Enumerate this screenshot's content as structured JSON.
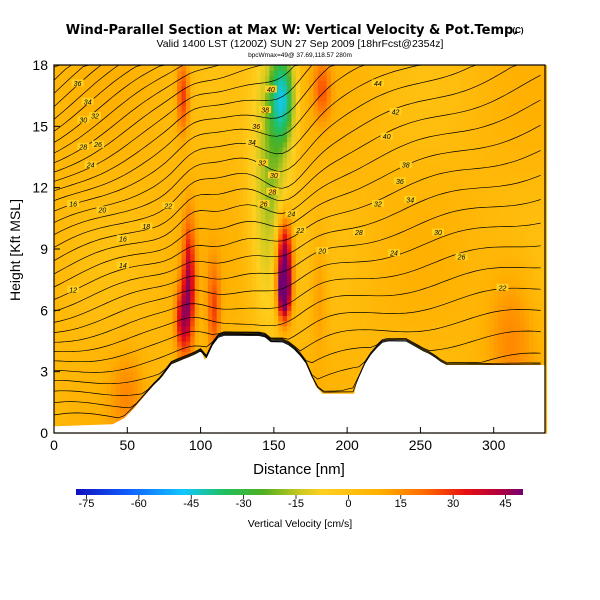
{
  "chart_data": {
    "type": "heatmap",
    "title": "Wind-Parallel Section at Max W: Vertical Velocity & Pot.Temp.",
    "title_mark": "(C)",
    "subtitle": "Valid 1400 LST (1200Z) SUN 27 Sep 2009 [18hrFcst@2354z]",
    "subtitle2": "bpcWmax=49@ 37.69,118.57 280m",
    "xlabel": "Distance [nm]",
    "ylabel": "Height [Kft MSL]",
    "xlim": [
      0,
      335
    ],
    "ylim": [
      0,
      18
    ],
    "x_ticks": [
      0,
      50,
      100,
      150,
      200,
      250,
      300
    ],
    "y_ticks": [
      0,
      3,
      6,
      9,
      12,
      15,
      18
    ],
    "colorbar": {
      "label": "Vertical Velocity [cm/s]",
      "ticks": [
        -75,
        -60,
        -45,
        -30,
        -15,
        0,
        15,
        30,
        45
      ],
      "range": [
        -78,
        50
      ]
    },
    "contour_labels": [
      {
        "x": 16,
        "y": 17.1,
        "text": "36"
      },
      {
        "x": 23,
        "y": 16.2,
        "text": "34"
      },
      {
        "x": 28,
        "y": 15.5,
        "text": "32"
      },
      {
        "x": 20,
        "y": 15.3,
        "text": "30"
      },
      {
        "x": 20,
        "y": 14.0,
        "text": "28"
      },
      {
        "x": 30,
        "y": 14.1,
        "text": "26"
      },
      {
        "x": 25,
        "y": 13.1,
        "text": "24"
      },
      {
        "x": 13,
        "y": 11.2,
        "text": "16"
      },
      {
        "x": 33,
        "y": 10.9,
        "text": "20"
      },
      {
        "x": 78,
        "y": 11.1,
        "text": "22"
      },
      {
        "x": 63,
        "y": 10.1,
        "text": "18"
      },
      {
        "x": 47,
        "y": 9.5,
        "text": "16"
      },
      {
        "x": 47,
        "y": 8.2,
        "text": "14"
      },
      {
        "x": 13,
        "y": 7.0,
        "text": "12"
      },
      {
        "x": 148,
        "y": 16.8,
        "text": "40"
      },
      {
        "x": 144,
        "y": 15.8,
        "text": "38"
      },
      {
        "x": 138,
        "y": 15.0,
        "text": "36"
      },
      {
        "x": 135,
        "y": 14.2,
        "text": "34"
      },
      {
        "x": 142,
        "y": 13.2,
        "text": "32"
      },
      {
        "x": 150,
        "y": 12.6,
        "text": "30"
      },
      {
        "x": 149,
        "y": 11.8,
        "text": "28"
      },
      {
        "x": 143,
        "y": 11.2,
        "text": "26"
      },
      {
        "x": 162,
        "y": 10.7,
        "text": "24"
      },
      {
        "x": 168,
        "y": 9.9,
        "text": "22"
      },
      {
        "x": 183,
        "y": 8.9,
        "text": "20"
      },
      {
        "x": 221,
        "y": 17.1,
        "text": "44"
      },
      {
        "x": 233,
        "y": 15.7,
        "text": "42"
      },
      {
        "x": 227,
        "y": 14.5,
        "text": "40"
      },
      {
        "x": 240,
        "y": 13.1,
        "text": "38"
      },
      {
        "x": 236,
        "y": 12.3,
        "text": "36"
      },
      {
        "x": 243,
        "y": 11.4,
        "text": "34"
      },
      {
        "x": 221,
        "y": 11.2,
        "text": "32"
      },
      {
        "x": 262,
        "y": 9.8,
        "text": "30"
      },
      {
        "x": 208,
        "y": 9.8,
        "text": "28"
      },
      {
        "x": 278,
        "y": 8.6,
        "text": "26"
      },
      {
        "x": 232,
        "y": 8.8,
        "text": "24"
      },
      {
        "x": 306,
        "y": 7.1,
        "text": "22"
      }
    ],
    "terrain": [
      [
        0,
        0.3
      ],
      [
        40,
        0.4
      ],
      [
        48,
        0.7
      ],
      [
        55,
        1.2
      ],
      [
        62,
        1.8
      ],
      [
        68,
        2.3
      ],
      [
        75,
        2.8
      ],
      [
        78,
        3.3
      ],
      [
        88,
        3.6
      ],
      [
        95,
        3.8
      ],
      [
        100,
        4.0
      ],
      [
        103,
        3.5
      ],
      [
        108,
        4.3
      ],
      [
        113,
        4.8
      ],
      [
        120,
        4.8
      ],
      [
        125,
        4.8
      ],
      [
        130,
        4.8
      ],
      [
        138,
        4.8
      ],
      [
        143,
        4.8
      ],
      [
        148,
        4.5
      ],
      [
        153,
        4.5
      ],
      [
        157,
        4.5
      ],
      [
        163,
        4.2
      ],
      [
        168,
        3.8
      ],
      [
        173,
        3.3
      ],
      [
        178,
        2.3
      ],
      [
        183,
        1.9
      ],
      [
        190,
        1.9
      ],
      [
        198,
        1.9
      ],
      [
        205,
        1.9
      ],
      [
        207,
        2.5
      ],
      [
        210,
        3.0
      ],
      [
        213,
        3.5
      ],
      [
        218,
        4.0
      ],
      [
        225,
        4.5
      ],
      [
        230,
        4.5
      ],
      [
        240,
        4.5
      ],
      [
        245,
        4.3
      ],
      [
        252,
        4.0
      ],
      [
        258,
        3.8
      ],
      [
        263,
        3.5
      ],
      [
        268,
        3.3
      ],
      [
        275,
        3.3
      ],
      [
        283,
        3.3
      ],
      [
        290,
        3.3
      ],
      [
        300,
        3.3
      ],
      [
        310,
        3.3
      ],
      [
        320,
        3.3
      ],
      [
        335,
        3.3
      ]
    ],
    "w_features": [
      {
        "x": 157,
        "y": 8.5,
        "sx": 4,
        "sy": 1.6,
        "w": 48
      },
      {
        "x": 157,
        "y": 6.8,
        "sx": 3,
        "sy": 0.9,
        "w": 38
      },
      {
        "x": 92,
        "y": 7.2,
        "sx": 3,
        "sy": 2.2,
        "w": 32
      },
      {
        "x": 87,
        "y": 5.5,
        "sx": 3,
        "sy": 1.2,
        "w": 26
      },
      {
        "x": 88,
        "y": 16.5,
        "sx": 3,
        "sy": 1.3,
        "w": 22
      },
      {
        "x": 109,
        "y": 6.0,
        "sx": 3,
        "sy": 1.6,
        "w": 18
      },
      {
        "x": 148,
        "y": 12.5,
        "sx": 9,
        "sy": 4.5,
        "w": -24
      },
      {
        "x": 156,
        "y": 16.5,
        "sx": 6,
        "sy": 1.6,
        "w": -42
      },
      {
        "x": 183,
        "y": 16.8,
        "sx": 4,
        "sy": 1.0,
        "w": 15
      },
      {
        "x": 181,
        "y": 7.0,
        "sx": 4,
        "sy": 2.2,
        "w": 8
      },
      {
        "x": 312,
        "y": 5.0,
        "sx": 12,
        "sy": 2.5,
        "w": 10
      },
      {
        "x": 50,
        "y": 2.0,
        "sx": 8,
        "sy": 1.5,
        "w": 8
      }
    ]
  }
}
